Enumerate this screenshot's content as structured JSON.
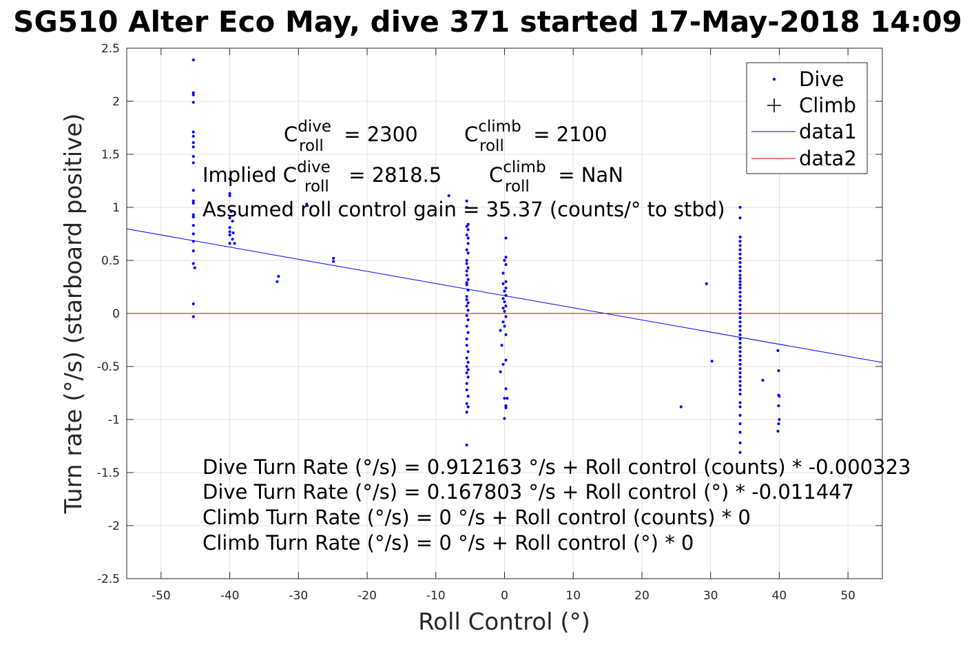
{
  "chart_data": {
    "type": "scatter",
    "title": "SG510 Alter Eco May, dive 371 started 17-May-2018 14:09",
    "xlabel": "Roll Control (°)",
    "ylabel": "Turn rate (°/s) (starboard positive)",
    "xlim": [
      -55,
      55
    ],
    "ylim": [
      -2.5,
      2.5
    ],
    "x_ticks": [
      "-50",
      "-40",
      "-30",
      "-20",
      "-10",
      "0",
      "10",
      "20",
      "30",
      "40",
      "50"
    ],
    "y_ticks": [
      "2.5",
      "2",
      "1.5",
      "1",
      "0.5",
      "0",
      "-0.5",
      "-1",
      "-1.5",
      "-2",
      "-2.5"
    ],
    "grid": true,
    "legend": {
      "placement": "top-right",
      "entries": [
        "Dive",
        "Climb",
        "data1",
        "data2"
      ]
    },
    "colors": {
      "dive": "#0000ff",
      "climb": "#000000",
      "data1": "#0000ff",
      "data2": "#cc0000"
    },
    "series": [
      {
        "name": "Dive",
        "marker": "dot",
        "points": [
          [
            -45.3,
            2.39
          ],
          [
            -45.3,
            2.08
          ],
          [
            -45.3,
            2.06
          ],
          [
            -45.3,
            1.99
          ],
          [
            -45.3,
            1.71
          ],
          [
            -45.3,
            1.67
          ],
          [
            -45.3,
            1.61
          ],
          [
            -45.3,
            1.57
          ],
          [
            -45.3,
            1.48
          ],
          [
            -45.3,
            1.42
          ],
          [
            -45.3,
            1.16
          ],
          [
            -45.3,
            1.06
          ],
          [
            -45.3,
            1.04
          ],
          [
            -45.3,
            0.93
          ],
          [
            -45.3,
            0.91
          ],
          [
            -45.3,
            0.83
          ],
          [
            -45.3,
            0.75
          ],
          [
            -45.3,
            0.68
          ],
          [
            -45.3,
            0.59
          ],
          [
            -45.3,
            0.47
          ],
          [
            -45.1,
            0.43
          ],
          [
            -45.3,
            0.09
          ],
          [
            -45.3,
            -0.03
          ],
          [
            -40.0,
            1.27
          ],
          [
            -40.0,
            1.13
          ],
          [
            -40.0,
            1.11
          ],
          [
            -39.8,
            0.96
          ],
          [
            -40.0,
            0.9
          ],
          [
            -39.6,
            0.87
          ],
          [
            -40.0,
            0.81
          ],
          [
            -40.0,
            0.77
          ],
          [
            -39.5,
            0.76
          ],
          [
            -40.0,
            0.74
          ],
          [
            -39.6,
            0.7
          ],
          [
            -40.0,
            0.66
          ],
          [
            -39.3,
            0.66
          ],
          [
            -41.5,
            0.98
          ],
          [
            -32.9,
            0.35
          ],
          [
            -33.1,
            0.3
          ],
          [
            -24.9,
            0.52
          ],
          [
            -24.9,
            0.49
          ],
          [
            -28.8,
            1.03
          ],
          [
            -8.1,
            1.11
          ],
          [
            -5.5,
            1.06
          ],
          [
            -5.5,
            1.0
          ],
          [
            -5.3,
            0.84
          ],
          [
            -5.5,
            0.82
          ],
          [
            -5.3,
            0.79
          ],
          [
            -5.5,
            0.74
          ],
          [
            -5.3,
            0.71
          ],
          [
            -5.3,
            0.66
          ],
          [
            -5.5,
            0.6
          ],
          [
            -5.3,
            0.57
          ],
          [
            -5.5,
            0.5
          ],
          [
            -5.5,
            0.47
          ],
          [
            -5.3,
            0.43
          ],
          [
            -5.5,
            0.4
          ],
          [
            -5.5,
            0.36
          ],
          [
            -5.3,
            0.32
          ],
          [
            -5.5,
            0.29
          ],
          [
            -5.5,
            0.27
          ],
          [
            -5.3,
            0.22
          ],
          [
            -5.5,
            0.16
          ],
          [
            -5.5,
            0.13
          ],
          [
            -5.3,
            0.1
          ],
          [
            -5.5,
            0.07
          ],
          [
            -5.3,
            0.03
          ],
          [
            -5.5,
            -0.02
          ],
          [
            -5.3,
            -0.06
          ],
          [
            -5.5,
            -0.12
          ],
          [
            -5.3,
            -0.18
          ],
          [
            -5.5,
            -0.24
          ],
          [
            -5.5,
            -0.3
          ],
          [
            -5.3,
            -0.36
          ],
          [
            -5.5,
            -0.42
          ],
          [
            -5.3,
            -0.46
          ],
          [
            -5.5,
            -0.5
          ],
          [
            -5.3,
            -0.53
          ],
          [
            -5.5,
            -0.56
          ],
          [
            -5.3,
            -0.6
          ],
          [
            -5.5,
            -0.66
          ],
          [
            -5.5,
            -0.72
          ],
          [
            -5.3,
            -0.78
          ],
          [
            -5.5,
            -0.85
          ],
          [
            -5.3,
            -0.88
          ],
          [
            -5.5,
            -0.93
          ],
          [
            -5.5,
            -1.24
          ],
          [
            0.2,
            0.71
          ],
          [
            0.2,
            0.53
          ],
          [
            0.0,
            0.5
          ],
          [
            0.2,
            0.46
          ],
          [
            -0.2,
            0.38
          ],
          [
            0.2,
            0.3
          ],
          [
            -0.2,
            0.28
          ],
          [
            0.2,
            0.24
          ],
          [
            0.0,
            0.21
          ],
          [
            0.2,
            0.17
          ],
          [
            -0.2,
            0.14
          ],
          [
            0.0,
            0.11
          ],
          [
            0.2,
            0.07
          ],
          [
            -0.2,
            0.05
          ],
          [
            0.0,
            0.02
          ],
          [
            0.2,
            -0.03
          ],
          [
            -0.2,
            -0.08
          ],
          [
            0.0,
            -0.12
          ],
          [
            -0.6,
            -0.16
          ],
          [
            0.2,
            -0.2
          ],
          [
            -0.4,
            -0.3
          ],
          [
            0.2,
            -0.44
          ],
          [
            -0.2,
            -0.48
          ],
          [
            -0.6,
            -0.55
          ],
          [
            0.2,
            -0.71
          ],
          [
            0.0,
            -0.8
          ],
          [
            0.4,
            -0.8
          ],
          [
            0.2,
            -0.87
          ],
          [
            0.2,
            -0.89
          ],
          [
            0.0,
            -0.99
          ],
          [
            29.4,
            0.28
          ],
          [
            30.2,
            -0.45
          ],
          [
            25.7,
            -0.88
          ],
          [
            37.6,
            -0.63
          ],
          [
            34.3,
            1.0
          ],
          [
            34.3,
            0.9
          ],
          [
            34.3,
            0.72
          ],
          [
            34.3,
            0.68
          ],
          [
            34.3,
            0.64
          ],
          [
            34.3,
            0.6
          ],
          [
            34.3,
            0.56
          ],
          [
            34.3,
            0.52
          ],
          [
            34.3,
            0.48
          ],
          [
            34.3,
            0.44
          ],
          [
            34.3,
            0.4
          ],
          [
            34.3,
            0.36
          ],
          [
            34.3,
            0.33
          ],
          [
            34.3,
            0.3
          ],
          [
            34.3,
            0.27
          ],
          [
            34.3,
            0.24
          ],
          [
            34.3,
            0.2
          ],
          [
            34.3,
            0.16
          ],
          [
            34.3,
            0.12
          ],
          [
            34.3,
            0.08
          ],
          [
            34.3,
            0.04
          ],
          [
            34.3,
            0.0
          ],
          [
            34.3,
            -0.04
          ],
          [
            34.3,
            -0.08
          ],
          [
            34.3,
            -0.12
          ],
          [
            34.3,
            -0.16
          ],
          [
            34.3,
            -0.2
          ],
          [
            34.3,
            -0.24
          ],
          [
            34.3,
            -0.28
          ],
          [
            34.3,
            -0.32
          ],
          [
            34.3,
            -0.36
          ],
          [
            34.3,
            -0.4
          ],
          [
            34.3,
            -0.44
          ],
          [
            34.3,
            -0.48
          ],
          [
            34.3,
            -0.52
          ],
          [
            34.3,
            -0.56
          ],
          [
            34.3,
            -0.6
          ],
          [
            34.3,
            -0.64
          ],
          [
            34.3,
            -0.68
          ],
          [
            34.3,
            -0.72
          ],
          [
            34.3,
            -0.76
          ],
          [
            34.3,
            -0.84
          ],
          [
            34.3,
            -0.88
          ],
          [
            34.3,
            -0.96
          ],
          [
            34.3,
            -1.04
          ],
          [
            34.3,
            -1.12
          ],
          [
            34.3,
            -1.22
          ],
          [
            34.3,
            -1.31
          ],
          [
            39.8,
            -0.35
          ],
          [
            39.9,
            -0.54
          ],
          [
            39.9,
            -0.77
          ],
          [
            40.0,
            -0.78
          ],
          [
            39.9,
            -0.87
          ],
          [
            40.0,
            -1.0
          ],
          [
            39.9,
            -1.04
          ],
          [
            39.8,
            -1.11
          ]
        ]
      },
      {
        "name": "Climb",
        "marker": "plus",
        "points": []
      },
      {
        "name": "data1",
        "type": "line",
        "x": [
          -55,
          55
        ],
        "y": [
          0.797,
          -0.462
        ]
      },
      {
        "name": "data2",
        "type": "line",
        "x": [
          -55,
          55
        ],
        "y": [
          0,
          0
        ]
      }
    ],
    "annotations": {
      "c_dive": {
        "base": "C",
        "sup": "dive",
        "sub": "roll",
        "rest": " = 2300"
      },
      "c_climb": {
        "base": "C",
        "sup": "climb",
        "sub": "roll",
        "rest": " = 2100"
      },
      "implied_prefix": "Implied C",
      "implied_dive_sup": "dive",
      "implied_dive_sub": "roll",
      "implied_dive_rest": " = 2818.5",
      "implied_climb": {
        "base": "C",
        "sup": "climb",
        "sub": "roll",
        "rest": " = NaN"
      },
      "gain": "Assumed roll control gain = 35.37 (counts/° to stbd)",
      "eq1": "Dive Turn Rate (°/s) = 0.912163 °/s + Roll control (counts) * -0.000323",
      "eq2": "Dive Turn Rate (°/s) = 0.167803 °/s + Roll control (°) * -0.011447",
      "eq3": "Climb Turn Rate (°/s) = 0 °/s + Roll control (counts) * 0",
      "eq4": "Climb Turn Rate (°/s) = 0 °/s + Roll control (°) * 0"
    }
  }
}
